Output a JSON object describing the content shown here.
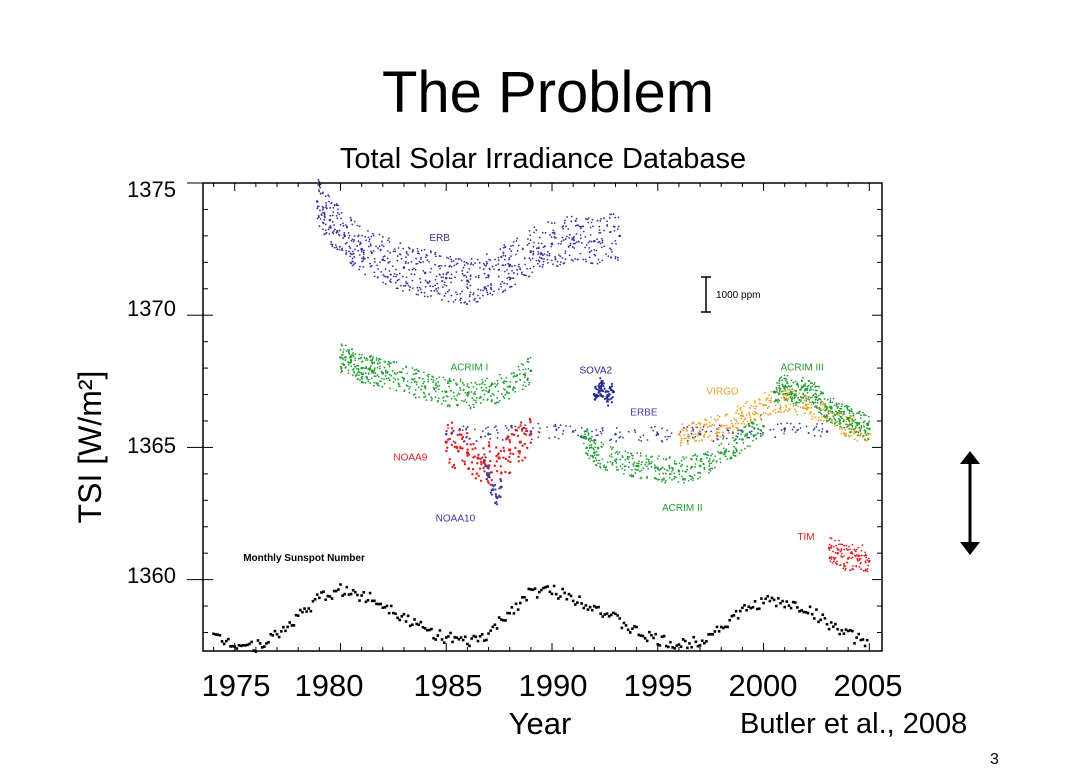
{
  "slide": {
    "title": "The Problem",
    "page_number": "3",
    "credit": "Butler et al., 2008"
  },
  "chart_data": {
    "type": "scatter",
    "title": "Total Solar Irradiance Database",
    "xlabel": "Year",
    "ylabel": "TSI [W/m²]",
    "xlim": [
      1973.5,
      2005.6
    ],
    "ylim": [
      1357.3,
      1375
    ],
    "x_ticks": [
      "1975",
      "1980",
      "1985",
      "1990",
      "1995",
      "2000",
      "2005"
    ],
    "y_ticks": [
      "1375",
      "1370",
      "1365",
      "1360"
    ],
    "scale_bar_label": "1000 ppm",
    "colors": {
      "ERB": "#3b2fa0",
      "ACRIM": "#1f9e2e",
      "NOAA": "#e02020",
      "VIRGO": "#f0a020",
      "TIM": "#e02020",
      "ERBE": "#3b3ba0",
      "sunspot": "#000000"
    },
    "series": [
      {
        "name": "ERB",
        "color": "#3b2fa0",
        "points": [
          [
            1978.9,
            1374.3
          ],
          [
            1979.5,
            1373.6
          ],
          [
            1980.2,
            1373.0
          ],
          [
            1981.0,
            1372.5
          ],
          [
            1982.0,
            1372.1
          ],
          [
            1983.0,
            1371.8
          ],
          [
            1984.0,
            1371.6
          ],
          [
            1985.0,
            1371.4
          ],
          [
            1986.0,
            1371.3
          ],
          [
            1987.0,
            1371.5
          ],
          [
            1988.0,
            1371.9
          ],
          [
            1989.0,
            1372.4
          ],
          [
            1990.0,
            1372.7
          ],
          [
            1991.0,
            1372.9
          ],
          [
            1992.0,
            1372.8
          ],
          [
            1993.2,
            1373.0
          ]
        ]
      },
      {
        "name": "ACRIM I",
        "color": "#1f9e2e",
        "points": [
          [
            1980.0,
            1368.4
          ],
          [
            1980.5,
            1368.3
          ],
          [
            1981.0,
            1368.0
          ],
          [
            1981.5,
            1367.9
          ],
          [
            1982.0,
            1367.8
          ],
          [
            1983.0,
            1367.6
          ],
          [
            1984.0,
            1367.3
          ],
          [
            1985.0,
            1367.1
          ],
          [
            1986.0,
            1367.0
          ],
          [
            1987.0,
            1367.1
          ],
          [
            1988.0,
            1367.3
          ],
          [
            1989.0,
            1367.9
          ]
        ]
      },
      {
        "name": "NOAA9",
        "color": "#e02020",
        "points": [
          [
            1985.0,
            1365.2
          ],
          [
            1985.5,
            1365.0
          ],
          [
            1986.0,
            1364.8
          ],
          [
            1986.5,
            1364.6
          ],
          [
            1987.0,
            1364.3
          ],
          [
            1987.5,
            1364.6
          ],
          [
            1988.0,
            1364.9
          ],
          [
            1988.5,
            1365.2
          ],
          [
            1989.0,
            1365.5
          ]
        ]
      },
      {
        "name": "NOAA10",
        "color": "#3b3ba0",
        "points": [
          [
            1986.8,
            1364.5
          ],
          [
            1987.0,
            1363.9
          ],
          [
            1987.2,
            1363.4
          ],
          [
            1987.4,
            1363.1
          ],
          [
            1987.6,
            1363.5
          ]
        ]
      },
      {
        "name": "SOVA2",
        "color": "#2a2a90",
        "points": [
          [
            1992.0,
            1367.0
          ],
          [
            1992.3,
            1367.3
          ],
          [
            1992.6,
            1366.9
          ],
          [
            1992.9,
            1367.1
          ]
        ]
      },
      {
        "name": "ERBE",
        "color": "#3b3ba0",
        "points": [
          [
            1985.0,
            1365.5
          ],
          [
            1987.0,
            1365.5
          ],
          [
            1989.0,
            1365.6
          ],
          [
            1991.0,
            1365.6
          ],
          [
            1993.0,
            1365.5
          ],
          [
            1995.0,
            1365.5
          ],
          [
            1997.0,
            1365.5
          ],
          [
            1999.0,
            1365.6
          ],
          [
            2001.0,
            1365.7
          ],
          [
            2003.0,
            1365.6
          ]
        ]
      },
      {
        "name": "ACRIM II",
        "color": "#1f9e2e",
        "points": [
          [
            1991.5,
            1365.4
          ],
          [
            1992.0,
            1364.8
          ],
          [
            1993.0,
            1364.5
          ],
          [
            1994.0,
            1364.3
          ],
          [
            1995.0,
            1364.2
          ],
          [
            1996.0,
            1364.1
          ],
          [
            1997.0,
            1364.3
          ],
          [
            1998.0,
            1364.8
          ],
          [
            1999.0,
            1365.3
          ],
          [
            2000.0,
            1365.8
          ]
        ]
      },
      {
        "name": "VIRGO",
        "color": "#f0a020",
        "points": [
          [
            1996.0,
            1365.5
          ],
          [
            1997.0,
            1365.6
          ],
          [
            1998.0,
            1365.8
          ],
          [
            1999.0,
            1366.2
          ],
          [
            2000.0,
            1366.6
          ],
          [
            2001.0,
            1366.8
          ],
          [
            2002.0,
            1366.6
          ],
          [
            2003.0,
            1366.2
          ],
          [
            2004.0,
            1365.8
          ],
          [
            2005.0,
            1365.5
          ]
        ]
      },
      {
        "name": "ACRIM III",
        "color": "#1f9e2e",
        "points": [
          [
            2000.5,
            1367.1
          ],
          [
            2001.0,
            1367.3
          ],
          [
            2001.5,
            1367.0
          ],
          [
            2002.0,
            1367.2
          ],
          [
            2002.5,
            1366.9
          ],
          [
            2003.0,
            1366.5
          ],
          [
            2003.5,
            1366.3
          ],
          [
            2004.0,
            1366.1
          ],
          [
            2004.5,
            1365.9
          ],
          [
            2005.0,
            1365.7
          ]
        ]
      },
      {
        "name": "TIM",
        "color": "#e02020",
        "points": [
          [
            2003.1,
            1361.2
          ],
          [
            2003.5,
            1361.0
          ],
          [
            2004.0,
            1360.8
          ],
          [
            2004.5,
            1360.9
          ],
          [
            2005.0,
            1360.7
          ]
        ]
      }
    ],
    "sunspot": {
      "name": "Monthly Sunspot Number",
      "color": "#000000",
      "points": [
        [
          1974.0,
          1357.8
        ],
        [
          1975.0,
          1357.6
        ],
        [
          1976.0,
          1357.5
        ],
        [
          1977.0,
          1357.9
        ],
        [
          1978.0,
          1358.6
        ],
        [
          1979.0,
          1359.3
        ],
        [
          1980.0,
          1359.6
        ],
        [
          1981.0,
          1359.4
        ],
        [
          1982.0,
          1359.1
        ],
        [
          1983.0,
          1358.6
        ],
        [
          1984.0,
          1358.1
        ],
        [
          1985.0,
          1357.8
        ],
        [
          1986.0,
          1357.6
        ],
        [
          1987.0,
          1357.9
        ],
        [
          1988.0,
          1358.8
        ],
        [
          1989.0,
          1359.5
        ],
        [
          1990.0,
          1359.6
        ],
        [
          1991.0,
          1359.3
        ],
        [
          1992.0,
          1359.0
        ],
        [
          1993.0,
          1358.5
        ],
        [
          1994.0,
          1358.0
        ],
        [
          1995.0,
          1357.7
        ],
        [
          1996.0,
          1357.5
        ],
        [
          1997.0,
          1357.7
        ],
        [
          1998.0,
          1358.2
        ],
        [
          1999.0,
          1358.8
        ],
        [
          2000.0,
          1359.2
        ],
        [
          2001.0,
          1359.1
        ],
        [
          2002.0,
          1358.9
        ],
        [
          2003.0,
          1358.4
        ],
        [
          2004.0,
          1357.9
        ],
        [
          2005.0,
          1357.6
        ]
      ]
    }
  }
}
